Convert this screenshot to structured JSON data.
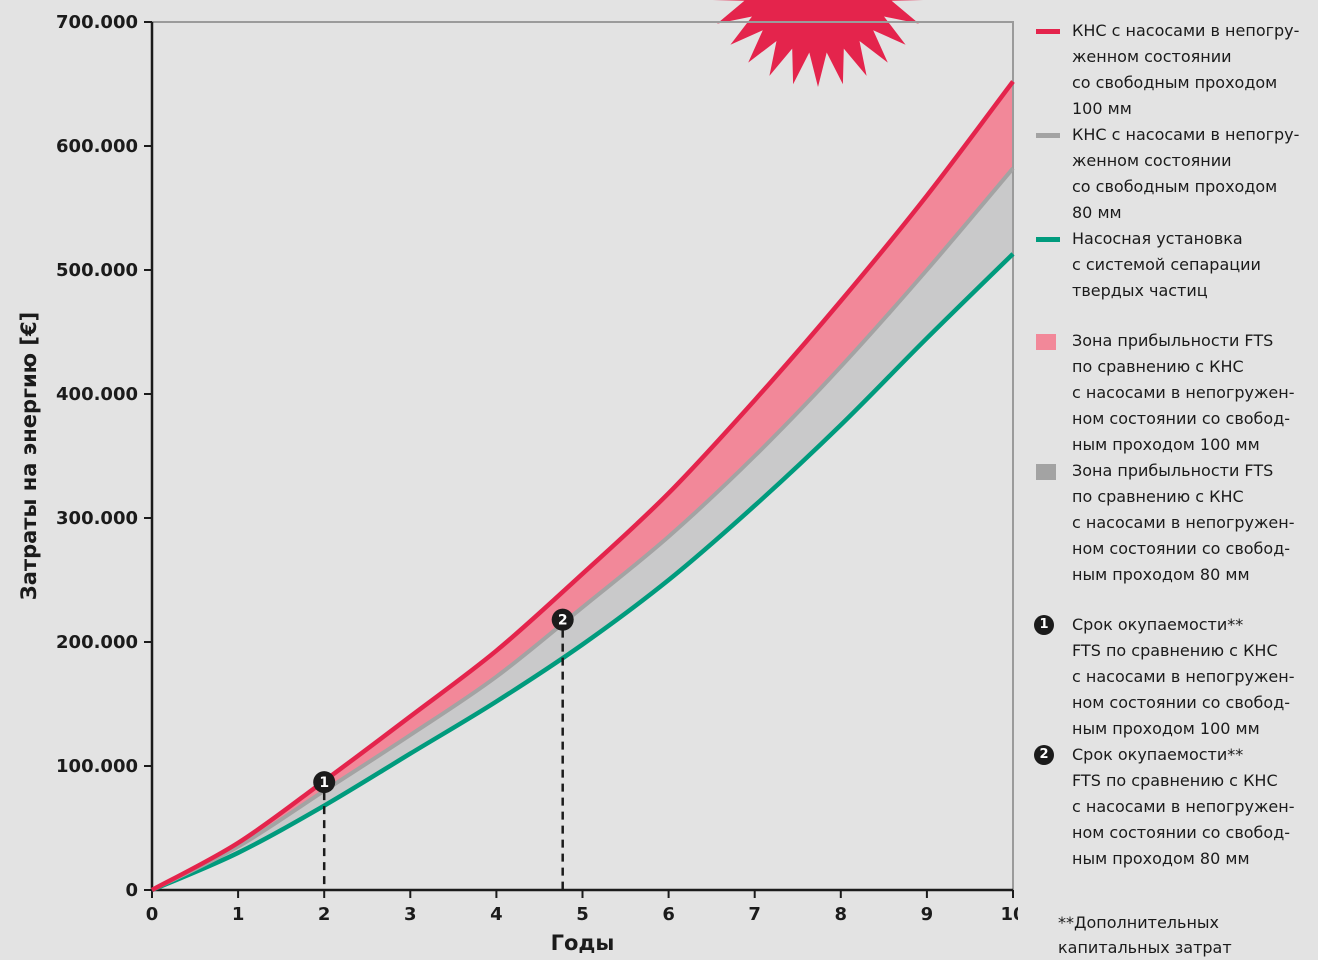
{
  "chart_data": {
    "type": "line",
    "xlabel": "Годы",
    "ylabel": "Затраты на энергию [€]",
    "x_ticks": [
      "0",
      "1",
      "2",
      "3",
      "4",
      "5",
      "6",
      "7",
      "8",
      "9",
      "10"
    ],
    "y_ticks": [
      "0",
      "100.000",
      "200.000",
      "300.000",
      "400.000",
      "500.000",
      "600.000",
      "700.000"
    ],
    "xlim": [
      0,
      10
    ],
    "ylim": [
      0,
      700000
    ],
    "series": [
      {
        "x": [
          0,
          1,
          2,
          3,
          4,
          5,
          6,
          7,
          8,
          9,
          10
        ],
        "values": [
          0,
          38000,
          88000,
          140000,
          193000,
          255000,
          320000,
          395000,
          475000,
          560000,
          652000
        ],
        "color": "#e4244c"
      },
      {
        "x": [
          0,
          1,
          2,
          3,
          4,
          5,
          6,
          7,
          8,
          9,
          10
        ],
        "values": [
          0,
          35000,
          80000,
          125000,
          172000,
          228000,
          285000,
          350000,
          422000,
          500000,
          582000
        ],
        "color": "#a3a3a3"
      },
      {
        "x": [
          0,
          1,
          2,
          3,
          4,
          5,
          6,
          7,
          8,
          9,
          10
        ],
        "values": [
          0,
          30000,
          68000,
          110000,
          152000,
          198000,
          250000,
          310000,
          375000,
          445000,
          513000
        ],
        "color": "#009b7d"
      }
    ],
    "markers": [
      {
        "label": "1",
        "x": 2.0,
        "y": 87000
      },
      {
        "label": "2",
        "x": 4.77,
        "y": 218000
      }
    ],
    "zone_colors": {
      "pink": "#f28899",
      "gray": "#c9c9ca"
    }
  },
  "legend": {
    "line_items": [
      {
        "text": "КНС с насосами в непогру-\nженном состоянии\nсо свободным проходом\n100 мм",
        "color": "#e4244c"
      },
      {
        "text": "КНС с насосами в непогру-\nженном состоянии\nсо свободным проходом\n80 мм",
        "color": "#a3a3a3"
      },
      {
        "text": "Насосная установка\nс системой сепарации\nтвердых частиц",
        "color": "#009b7d"
      }
    ],
    "zone_items": [
      {
        "text": "Зона прибыльности FTS\nпо сравнению с КНС\nс насосами в непогружен-\nном состоянии со свобод-\nным проходом 100 мм",
        "color": "#f28899"
      },
      {
        "text": "Зона прибыльности FTS\nпо сравнению с КНС\nс насосами в непогружен-\nном состоянии со свобод-\nным проходом 80 мм",
        "color": "#a3a3a3"
      }
    ],
    "marker_items": [
      {
        "num": "1",
        "text": "Срок окупаемости**\nFTS по сравнению с КНС\nс насосами в непогружен-\nном состоянии со свобод-\nным проходом 100 мм"
      },
      {
        "num": "2",
        "text": "Срок окупаемости**\nFTS по сравнению с КНС\nс насосами в непогружен-\nном состоянии со свобод-\nным проходом 80 мм"
      }
    ],
    "footnote": "**Дополнительных\n капитальных затрат"
  },
  "colors": {
    "background": "#e3e3e3",
    "starburst": "#e4244c",
    "axis": "#1b1b1b"
  }
}
